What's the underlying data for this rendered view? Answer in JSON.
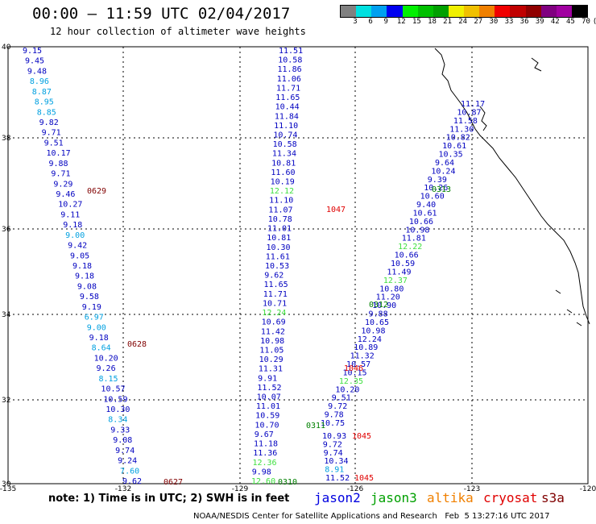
{
  "title": "00:00 – 11:59 UTC 02/04/2017",
  "subtitle": "12 hour collection of altimeter wave heights",
  "legend": {
    "colors": [
      "#808080",
      "#00e0e0",
      "#00a0f0",
      "#0000f0",
      "#00f000",
      "#00c000",
      "#00a000",
      "#f0f000",
      "#f0c000",
      "#f08000",
      "#f00000",
      "#c00000",
      "#900000",
      "#800080",
      "#a000a0",
      "#000000"
    ],
    "labels": [
      "3",
      "6",
      "9",
      "12",
      "15",
      "18",
      "21",
      "24",
      "27",
      "30",
      "33",
      "36",
      "39",
      "42",
      "45",
      "70",
      "(ft)"
    ]
  },
  "axes": {
    "lon_ticks": [
      "-135",
      "-132",
      "-129",
      "-126",
      "-123",
      "-120"
    ],
    "lat_ticks": [
      "40",
      "38",
      "36",
      "34",
      "32",
      "30"
    ]
  },
  "tracks": [
    {
      "id": "0627",
      "color": "#800000",
      "values": [
        {
          "t": "9.15",
          "c": "#0000c0"
        },
        {
          "t": "9.45",
          "c": "#0000c0"
        },
        {
          "t": "9.48",
          "c": "#0000c0"
        },
        {
          "t": "8.96",
          "c": "#00a0e0"
        },
        {
          "t": "8.87",
          "c": "#00a0e0"
        },
        {
          "t": "8.95",
          "c": "#00a0e0"
        },
        {
          "t": "8.85",
          "c": "#00a0e0"
        },
        {
          "t": "9.82",
          "c": "#0000c0"
        },
        {
          "t": "9.71",
          "c": "#0000c0"
        },
        {
          "t": "9.51",
          "c": "#0000c0"
        },
        {
          "t": "10.17",
          "c": "#0000c0"
        },
        {
          "t": "9.88",
          "c": "#0000c0"
        },
        {
          "t": "9.71",
          "c": "#0000c0"
        },
        {
          "t": "9.29",
          "c": "#0000c0"
        },
        {
          "t": "9.46",
          "c": "#0000c0"
        },
        {
          "t": "10.27",
          "c": "#0000c0"
        },
        {
          "t": "9.11",
          "c": "#0000c0"
        },
        {
          "t": "9.18",
          "c": "#0000c0"
        },
        {
          "t": "9.00",
          "c": "#00a0e0"
        },
        {
          "t": "9.42",
          "c": "#0000c0"
        },
        {
          "t": "9.05",
          "c": "#0000c0"
        },
        {
          "t": "9.18",
          "c": "#0000c0"
        },
        {
          "t": "9.18",
          "c": "#0000c0"
        },
        {
          "t": "9.08",
          "c": "#0000c0"
        },
        {
          "t": "9.58",
          "c": "#0000c0"
        },
        {
          "t": "9.19",
          "c": "#0000c0"
        },
        {
          "t": "6.97",
          "c": "#00a0e0"
        },
        {
          "t": "9.00",
          "c": "#00a0e0"
        },
        {
          "t": "9.18",
          "c": "#0000c0"
        },
        {
          "t": "8.64",
          "c": "#00a0e0"
        },
        {
          "t": "10.20",
          "c": "#0000c0"
        },
        {
          "t": "9.26",
          "c": "#0000c0"
        },
        {
          "t": "8.15",
          "c": "#00a0e0"
        },
        {
          "t": "10.57",
          "c": "#0000c0"
        },
        {
          "t": "10.59",
          "c": "#0000c0"
        },
        {
          "t": "10.30",
          "c": "#0000c0"
        },
        {
          "t": "8.34",
          "c": "#00a0e0"
        },
        {
          "t": "9.33",
          "c": "#0000c0"
        },
        {
          "t": "9.08",
          "c": "#0000c0"
        },
        {
          "t": "9.74",
          "c": "#0000c0"
        },
        {
          "t": "9.24",
          "c": "#0000c0"
        },
        {
          "t": "7.60",
          "c": "#00a0e0"
        },
        {
          "t": "9.62",
          "c": "#0000c0"
        }
      ]
    },
    {
      "id": "1046",
      "color": "#e00000",
      "values": [
        {
          "t": "11.51",
          "c": "#0000c0"
        },
        {
          "t": "10.58",
          "c": "#0000c0"
        },
        {
          "t": "11.86",
          "c": "#0000c0"
        },
        {
          "t": "11.06",
          "c": "#0000c0"
        },
        {
          "t": "11.71",
          "c": "#0000c0"
        },
        {
          "t": "11.65",
          "c": "#0000c0"
        },
        {
          "t": "10.44",
          "c": "#0000c0"
        },
        {
          "t": "11.84",
          "c": "#0000c0"
        },
        {
          "t": "11.10",
          "c": "#0000c0"
        },
        {
          "t": "10.74",
          "c": "#0000c0"
        },
        {
          "t": "10.58",
          "c": "#0000c0"
        },
        {
          "t": "11.34",
          "c": "#0000c0"
        },
        {
          "t": "10.81",
          "c": "#0000c0"
        },
        {
          "t": "11.60",
          "c": "#0000c0"
        },
        {
          "t": "10.19",
          "c": "#0000c0"
        },
        {
          "t": "12.12",
          "c": "#40e040"
        },
        {
          "t": "11.10",
          "c": "#0000c0"
        },
        {
          "t": "11.07",
          "c": "#0000c0"
        },
        {
          "t": "10.78",
          "c": "#0000c0"
        },
        {
          "t": "11.01",
          "c": "#0000c0"
        },
        {
          "t": "10.81",
          "c": "#0000c0"
        },
        {
          "t": "10.30",
          "c": "#0000c0"
        },
        {
          "t": "11.61",
          "c": "#0000c0"
        },
        {
          "t": "10.53",
          "c": "#0000c0"
        },
        {
          "t": "9.62",
          "c": "#0000c0"
        },
        {
          "t": "11.65",
          "c": "#0000c0"
        },
        {
          "t": "11.71",
          "c": "#0000c0"
        },
        {
          "t": "10.71",
          "c": "#0000c0"
        },
        {
          "t": "12.24",
          "c": "#40e040"
        },
        {
          "t": "10.69",
          "c": "#0000c0"
        },
        {
          "t": "11.42",
          "c": "#0000c0"
        },
        {
          "t": "10.98",
          "c": "#0000c0"
        },
        {
          "t": "11.05",
          "c": "#0000c0"
        },
        {
          "t": "10.29",
          "c": "#0000c0"
        },
        {
          "t": "11.31",
          "c": "#0000c0"
        },
        {
          "t": "9.91",
          "c": "#0000c0"
        },
        {
          "t": "11.52",
          "c": "#0000c0"
        },
        {
          "t": "10.07",
          "c": "#0000c0"
        },
        {
          "t": "11.01",
          "c": "#0000c0"
        },
        {
          "t": "10.59",
          "c": "#0000c0"
        },
        {
          "t": "10.70",
          "c": "#0000c0"
        },
        {
          "t": "9.67",
          "c": "#0000c0"
        },
        {
          "t": "11.18",
          "c": "#0000c0"
        },
        {
          "t": "11.36",
          "c": "#0000c0"
        },
        {
          "t": "12.36",
          "c": "#40e040"
        },
        {
          "t": "9.98",
          "c": "#0000c0"
        },
        {
          "t": "12.60",
          "c": "#40e040"
        }
      ]
    },
    {
      "id": "0313",
      "color": "#008000",
      "values": [
        {
          "t": "11.17",
          "c": "#0000c0"
        },
        {
          "t": "10.87",
          "c": "#0000c0"
        },
        {
          "t": "11.58",
          "c": "#0000c0"
        },
        {
          "t": "11.30",
          "c": "#0000c0"
        },
        {
          "t": "10.82",
          "c": "#0000c0"
        },
        {
          "t": "10.61",
          "c": "#0000c0"
        },
        {
          "t": "10.35",
          "c": "#0000c0"
        },
        {
          "t": "9.64",
          "c": "#0000c0"
        },
        {
          "t": "10.24",
          "c": "#0000c0"
        },
        {
          "t": "9.39",
          "c": "#0000c0"
        },
        {
          "t": "10.26",
          "c": "#0000c0"
        },
        {
          "t": "10.60",
          "c": "#0000c0"
        },
        {
          "t": "9.40",
          "c": "#0000c0"
        },
        {
          "t": "10.61",
          "c": "#0000c0"
        },
        {
          "t": "10.66",
          "c": "#0000c0"
        },
        {
          "t": "10.98",
          "c": "#0000c0"
        },
        {
          "t": "11.81",
          "c": "#0000c0"
        },
        {
          "t": "12.22",
          "c": "#40e040"
        },
        {
          "t": "10.66",
          "c": "#0000c0"
        },
        {
          "t": "10.59",
          "c": "#0000c0"
        },
        {
          "t": "11.49",
          "c": "#0000c0"
        },
        {
          "t": "12.37",
          "c": "#40e040"
        },
        {
          "t": "10.80",
          "c": "#0000c0"
        },
        {
          "t": "11.20",
          "c": "#0000c0"
        },
        {
          "t": "10.90",
          "c": "#0000c0"
        },
        {
          "t": "9.88",
          "c": "#0000c0"
        },
        {
          "t": "10.65",
          "c": "#0000c0"
        },
        {
          "t": "10.98",
          "c": "#0000c0"
        },
        {
          "t": "12.24",
          "c": "#0000c0"
        },
        {
          "t": "10.89",
          "c": "#0000c0"
        },
        {
          "t": "11.32",
          "c": "#0000c0"
        },
        {
          "t": "10.57",
          "c": "#0000c0"
        },
        {
          "t": "10.15",
          "c": "#0000c0"
        },
        {
          "t": "12.35",
          "c": "#40e040"
        },
        {
          "t": "10.20",
          "c": "#0000c0"
        },
        {
          "t": "9.51",
          "c": "#0000c0"
        },
        {
          "t": "9.72",
          "c": "#0000c0"
        },
        {
          "t": "9.78",
          "c": "#0000c0"
        },
        {
          "t": "10.75",
          "c": "#0000c0"
        }
      ]
    },
    {
      "id": "1045",
      "color": "#e00000",
      "values": [
        {
          "t": "10.93",
          "c": "#0000c0"
        },
        {
          "t": "9.72",
          "c": "#0000c0"
        },
        {
          "t": "9.74",
          "c": "#0000c0"
        },
        {
          "t": "10.34",
          "c": "#0000c0"
        },
        {
          "t": "8.91",
          "c": "#00a0e0"
        },
        {
          "t": "11.52",
          "c": "#0000c0"
        }
      ]
    }
  ],
  "pass_labels": [
    {
      "t": "0629",
      "c": "#800000"
    },
    {
      "t": "0628",
      "c": "#800000"
    },
    {
      "t": "0627",
      "c": "#800000"
    },
    {
      "t": "1047",
      "c": "#e00000"
    },
    {
      "t": "1046",
      "c": "#e00000"
    },
    {
      "t": "1045",
      "c": "#e00000"
    },
    {
      "t": "1045",
      "c": "#e00000"
    },
    {
      "t": "0313",
      "c": "#008000"
    },
    {
      "t": "0312",
      "c": "#008000"
    },
    {
      "t": "0311",
      "c": "#008000"
    },
    {
      "t": "0310",
      "c": "#008000"
    }
  ],
  "note": "note: 1) Time is in UTC; 2) SWH is in feet",
  "satellites": [
    {
      "name": "jason2",
      "color": "#0000e0"
    },
    {
      "name": "jason3",
      "color": "#00a000"
    },
    {
      "name": "altika",
      "color": "#f08000"
    },
    {
      "name": "cryosat",
      "color": "#e00000"
    },
    {
      "name": "s3a",
      "color": "#800000"
    }
  ],
  "credit": "NOAA/NESDIS Center for Satellite Applications and Research   Feb  5 13:27:16 UTC 2017"
}
